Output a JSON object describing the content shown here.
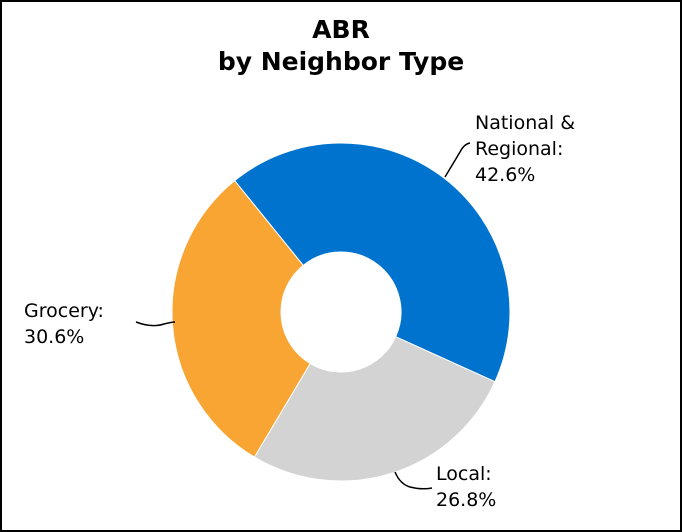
{
  "chart_data": {
    "type": "pie",
    "donut": true,
    "title_lines": [
      "ABR",
      "by Neighbor Type"
    ],
    "slices": [
      {
        "category": "National & Regional",
        "label_lines": [
          "National &",
          "Regional:",
          "42.6%"
        ],
        "value": 42.6,
        "color": "#0073CF"
      },
      {
        "category": "Local",
        "label_lines": [
          "Local:",
          "26.8%"
        ],
        "value": 26.8,
        "color": "#D3D3D3"
      },
      {
        "category": "Grocery",
        "label_lines": [
          "Grocery:",
          "30.6%"
        ],
        "value": 30.6,
        "color": "#F8A534"
      }
    ],
    "legend": "none"
  }
}
